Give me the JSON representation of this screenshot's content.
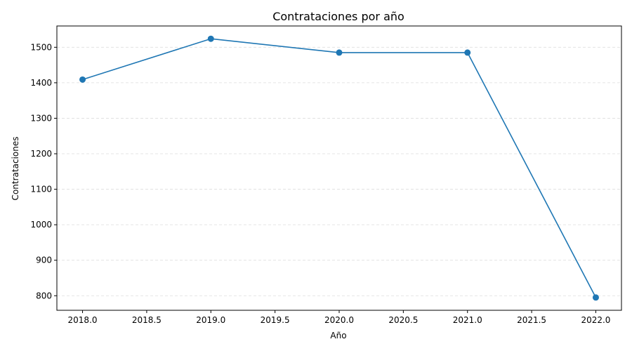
{
  "chart_data": {
    "type": "line",
    "title": "Contrataciones por año",
    "xlabel": "Año",
    "ylabel": "Contrataciones",
    "x": [
      2018,
      2019,
      2020,
      2021,
      2022
    ],
    "series": [
      {
        "values": [
          1409,
          1524,
          1485,
          1485,
          795
        ]
      }
    ],
    "xlim": [
      2017.8,
      2022.2
    ],
    "ylim": [
      759,
      1560
    ],
    "x_ticks": [
      "2018.0",
      "2018.5",
      "2019.0",
      "2019.5",
      "2020.0",
      "2020.5",
      "2021.0",
      "2021.5",
      "2022.0"
    ],
    "y_ticks": [
      "800",
      "900",
      "1000",
      "1100",
      "1200",
      "1300",
      "1400",
      "1500"
    ],
    "grid": "y dashed",
    "line_color": "#1f77b4",
    "marker": "circle"
  }
}
